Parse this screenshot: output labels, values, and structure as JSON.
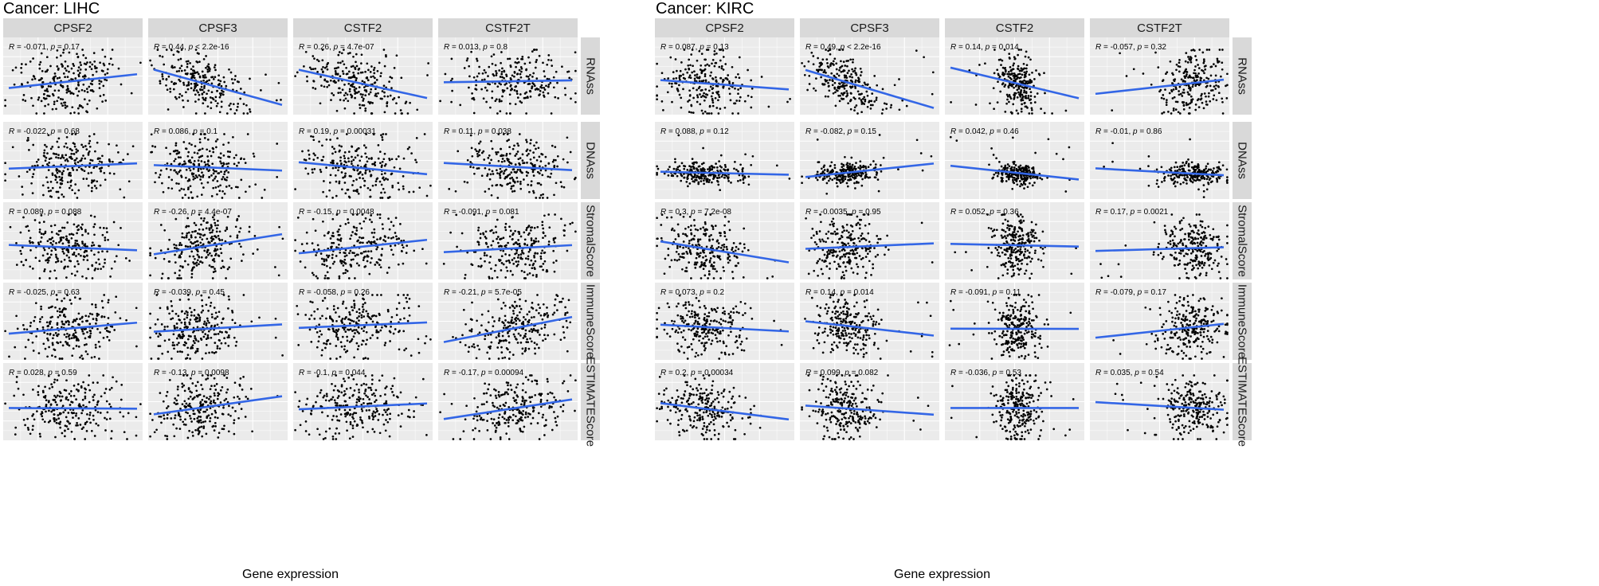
{
  "chart_data": [
    {
      "type": "scatter",
      "title": "Cancer: LIHC",
      "xlabel": "Gene expression",
      "ylabel": "",
      "genes": [
        "CPSF2",
        "CPSF3",
        "CSTF2",
        "CSTF2T"
      ],
      "scores": [
        "RNAss",
        "DNAss",
        "StromalScore",
        "ImmuneScore",
        "ESTIMATEScore"
      ],
      "grid": true,
      "cells": [
        [
          {
            "R": "-0.071",
            "p": "0.17"
          },
          {
            "R": "0.44",
            "p": "< 2.2e-16"
          },
          {
            "R": "0.26",
            "p": "4.7e-07"
          },
          {
            "R": "0.013",
            "p": "0.8"
          }
        ],
        [
          {
            "R": "-0.022",
            "p": "0.68"
          },
          {
            "R": "0.086",
            "p": "0.1"
          },
          {
            "R": "0.19",
            "p": "0.00031"
          },
          {
            "R": "0.11",
            "p": "0.038"
          }
        ],
        [
          {
            "R": "0.089",
            "p": "0.088"
          },
          {
            "R": "-0.26",
            "p": "4.4e-07"
          },
          {
            "R": "-0.15",
            "p": "0.0048"
          },
          {
            "R": "-0.091",
            "p": "0.081"
          }
        ],
        [
          {
            "R": "-0.025",
            "p": "0.63"
          },
          {
            "R": "-0.039",
            "p": "0.45"
          },
          {
            "R": "-0.058",
            "p": "0.26"
          },
          {
            "R": "-0.21",
            "p": "5.7e-05"
          }
        ],
        [
          {
            "R": "0.028",
            "p": "0.59"
          },
          {
            "R": "-0.13",
            "p": "0.0098"
          },
          {
            "R": "-0.1",
            "p": "0.044"
          },
          {
            "R": "-0.17",
            "p": "0.00094"
          }
        ]
      ]
    },
    {
      "type": "scatter",
      "title": "Cancer: KIRC",
      "xlabel": "Gene expression",
      "ylabel": "",
      "genes": [
        "CPSF2",
        "CPSF3",
        "CSTF2",
        "CSTF2T"
      ],
      "scores": [
        "RNAss",
        "DNAss",
        "StromalScore",
        "ImmuneScore",
        "ESTIMATEScore"
      ],
      "grid": true,
      "cells": [
        [
          {
            "R": "0.087",
            "p": "0.13"
          },
          {
            "R": "0.49",
            "p": "< 2.2e-16"
          },
          {
            "R": "0.14",
            "p": "0.014"
          },
          {
            "R": "-0.057",
            "p": "0.32"
          }
        ],
        [
          {
            "R": "0.088",
            "p": "0.12"
          },
          {
            "R": "-0.082",
            "p": "0.15"
          },
          {
            "R": "0.042",
            "p": "0.46"
          },
          {
            "R": "-0.01",
            "p": "0.86"
          }
        ],
        [
          {
            "R": "0.3",
            "p": "7.2e-08"
          },
          {
            "R": "-0.0035",
            "p": "0.95"
          },
          {
            "R": "0.052",
            "p": "0.36"
          },
          {
            "R": "0.17",
            "p": "0.0021"
          }
        ],
        [
          {
            "R": "0.073",
            "p": "0.2"
          },
          {
            "R": "0.14",
            "p": "0.014"
          },
          {
            "R": "-0.091",
            "p": "0.11"
          },
          {
            "R": "-0.079",
            "p": "0.17"
          }
        ],
        [
          {
            "R": "0.2",
            "p": "0.00034"
          },
          {
            "R": "0.099",
            "p": "0.082"
          },
          {
            "R": "-0.036",
            "p": "0.53"
          },
          {
            "R": "0.035",
            "p": "0.54"
          }
        ]
      ]
    }
  ],
  "colors": {
    "panel_bg": "#ebebeb",
    "grid": "#ffffff",
    "strip_bg": "#d9d9d9",
    "points": "#000000",
    "fit_line": "#3366e6"
  }
}
